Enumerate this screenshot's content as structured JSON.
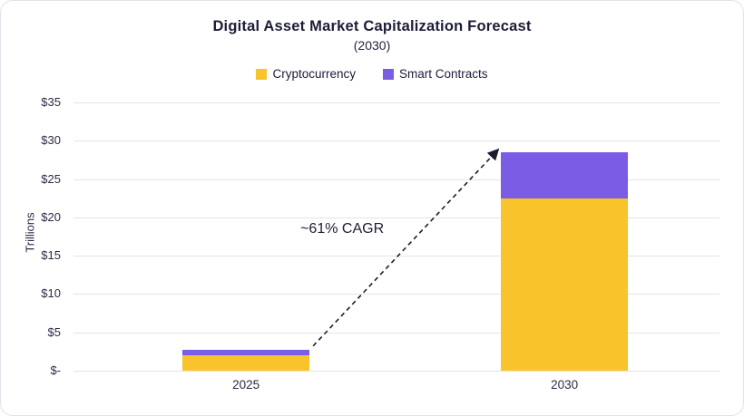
{
  "chart_data": {
    "type": "bar",
    "stacked": true,
    "title": "Digital Asset Market Capitalization Forecast",
    "subtitle": "(2030)",
    "categories": [
      "2025",
      "2030"
    ],
    "series": [
      {
        "name": "Cryptocurrency",
        "color": "#F9C32C",
        "values": [
          2,
          22.5
        ]
      },
      {
        "name": "Smart Contracts",
        "color": "#7B5CE5",
        "values": [
          0.75,
          6
        ]
      }
    ],
    "xlabel": "",
    "ylabel": "Trillions",
    "ylim": [
      0,
      35
    ],
    "ytick_step": 5,
    "ytick_labels": [
      "$-",
      "$5",
      "$10",
      "$15",
      "$20",
      "$25",
      "$30",
      "$35"
    ],
    "grid": true,
    "legend_position": "top",
    "annotation": {
      "text": "~61% CAGR"
    }
  }
}
